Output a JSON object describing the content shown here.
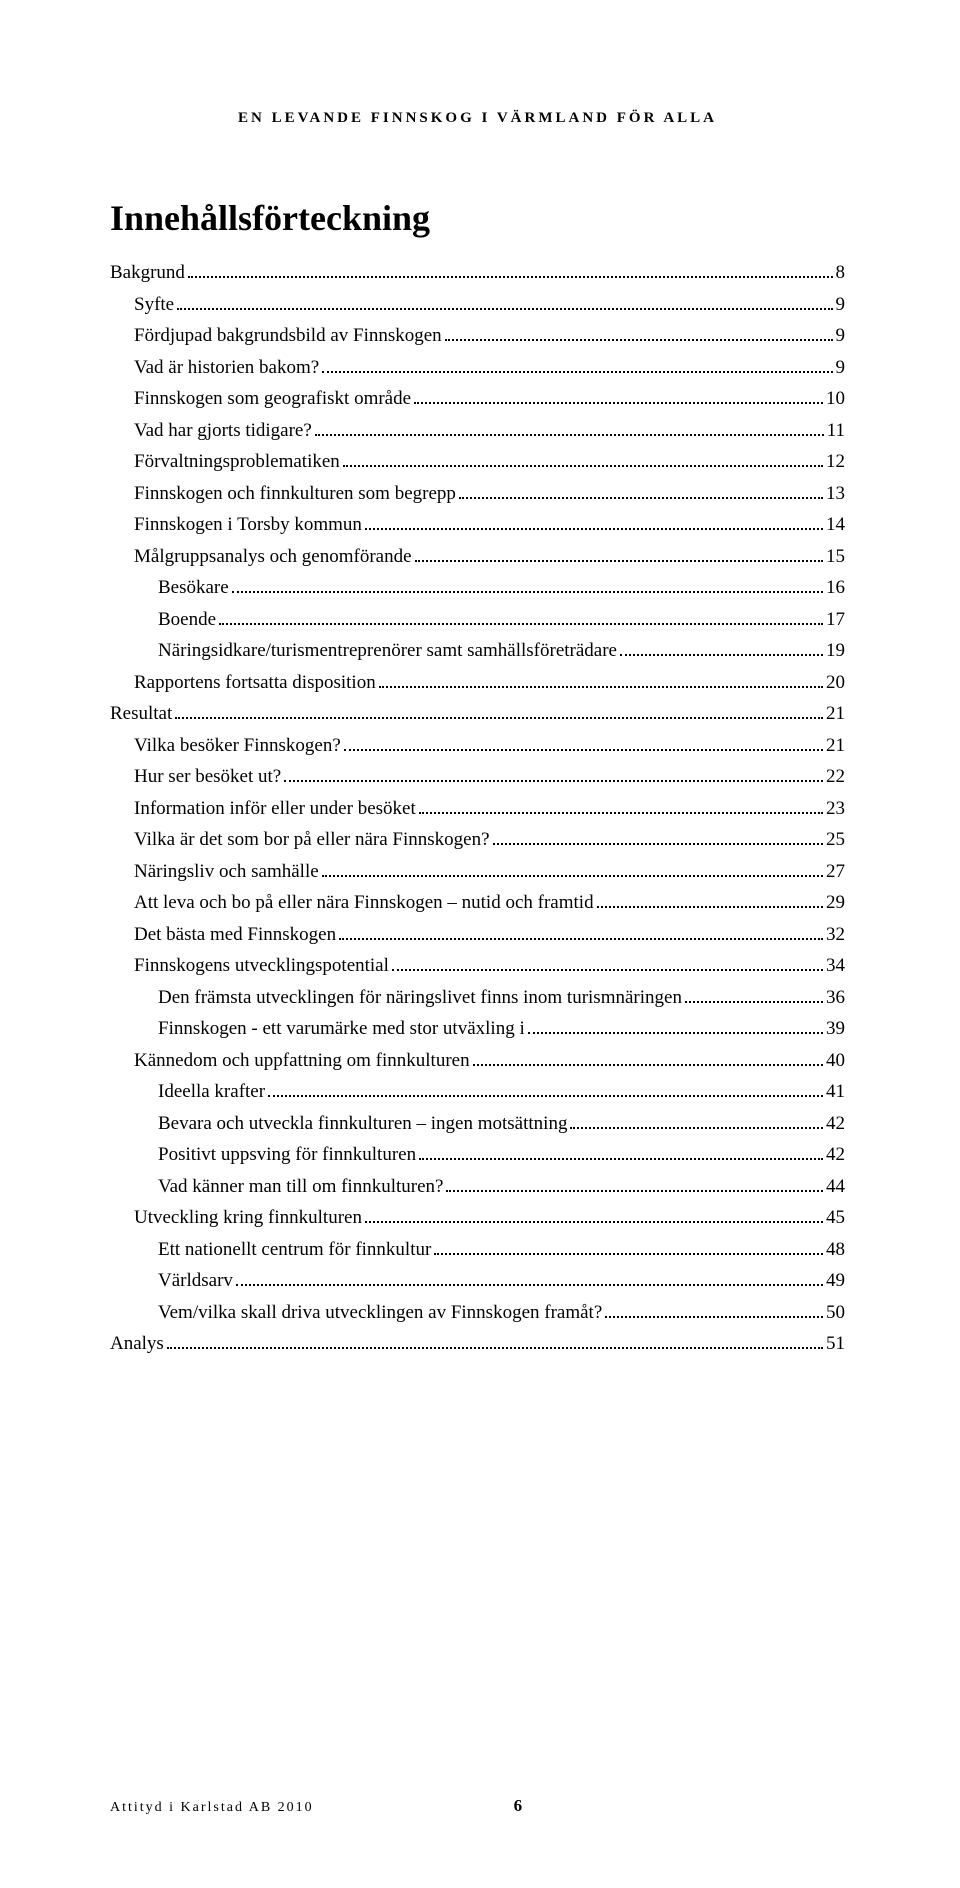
{
  "running_header": "EN LEVANDE FINNSKOG I VÄRMLAND FÖR ALLA",
  "title": "Innehållsförteckning",
  "toc": [
    {
      "label": "Bakgrund",
      "page": "8",
      "level": 0
    },
    {
      "label": "Syfte",
      "page": "9",
      "level": 1
    },
    {
      "label": "Fördjupad bakgrundsbild av Finnskogen",
      "page": "9",
      "level": 1
    },
    {
      "label": "Vad är historien bakom?",
      "page": "9",
      "level": 1
    },
    {
      "label": "Finnskogen som geografiskt område",
      "page": "10",
      "level": 1
    },
    {
      "label": "Vad har gjorts tidigare?",
      "page": "11",
      "level": 1
    },
    {
      "label": "Förvaltningsproblematiken",
      "page": "12",
      "level": 1
    },
    {
      "label": "Finnskogen och finnkulturen som begrepp",
      "page": "13",
      "level": 1
    },
    {
      "label": "Finnskogen i Torsby kommun",
      "page": "14",
      "level": 1
    },
    {
      "label": "Målgruppsanalys och genomförande",
      "page": "15",
      "level": 1
    },
    {
      "label": "Besökare",
      "page": "16",
      "level": 2
    },
    {
      "label": "Boende",
      "page": "17",
      "level": 2
    },
    {
      "label": "Näringsidkare/turismentreprenörer samt samhällsföreträdare",
      "page": "19",
      "level": 2
    },
    {
      "label": "Rapportens fortsatta disposition",
      "page": "20",
      "level": 1
    },
    {
      "label": "Resultat",
      "page": "21",
      "level": 0
    },
    {
      "label": "Vilka besöker Finnskogen?",
      "page": "21",
      "level": 1
    },
    {
      "label": "Hur ser besöket ut?",
      "page": "22",
      "level": 1
    },
    {
      "label": "Information inför eller under besöket",
      "page": "23",
      "level": 1
    },
    {
      "label": "Vilka är det som bor på eller nära Finnskogen?",
      "page": "25",
      "level": 1
    },
    {
      "label": "Näringsliv och samhälle",
      "page": "27",
      "level": 1
    },
    {
      "label": "Att leva och bo på eller nära Finnskogen – nutid och framtid",
      "page": "29",
      "level": 1
    },
    {
      "label": "Det bästa med Finnskogen",
      "page": "32",
      "level": 1
    },
    {
      "label": "Finnskogens utvecklingspotential",
      "page": "34",
      "level": 1
    },
    {
      "label": "Den främsta utvecklingen för näringslivet finns inom turismnäringen",
      "page": "36",
      "level": 2
    },
    {
      "label": "Finnskogen - ett varumärke med stor utväxling i",
      "page": "39",
      "level": 2
    },
    {
      "label": "Kännedom och uppfattning om finnkulturen",
      "page": "40",
      "level": 1
    },
    {
      "label": "Ideella krafter",
      "page": "41",
      "level": 2
    },
    {
      "label": "Bevara och utveckla finnkulturen – ingen motsättning",
      "page": "42",
      "level": 2
    },
    {
      "label": "Positivt uppsving för finnkulturen",
      "page": "42",
      "level": 2
    },
    {
      "label": "Vad känner man till om finnkulturen?",
      "page": "44",
      "level": 2
    },
    {
      "label": "Utveckling kring finnkulturen",
      "page": "45",
      "level": 1
    },
    {
      "label": "Ett nationellt centrum för finnkultur",
      "page": "48",
      "level": 2
    },
    {
      "label": "Världsarv",
      "page": "49",
      "level": 2
    },
    {
      "label": "Vem/vilka skall driva utvecklingen av Finnskogen framåt?",
      "page": "50",
      "level": 2
    },
    {
      "label": "Analys",
      "page": "51",
      "level": 0
    }
  ],
  "footer": {
    "left": "Attityd i Karlstad AB 2010",
    "page": "6"
  }
}
